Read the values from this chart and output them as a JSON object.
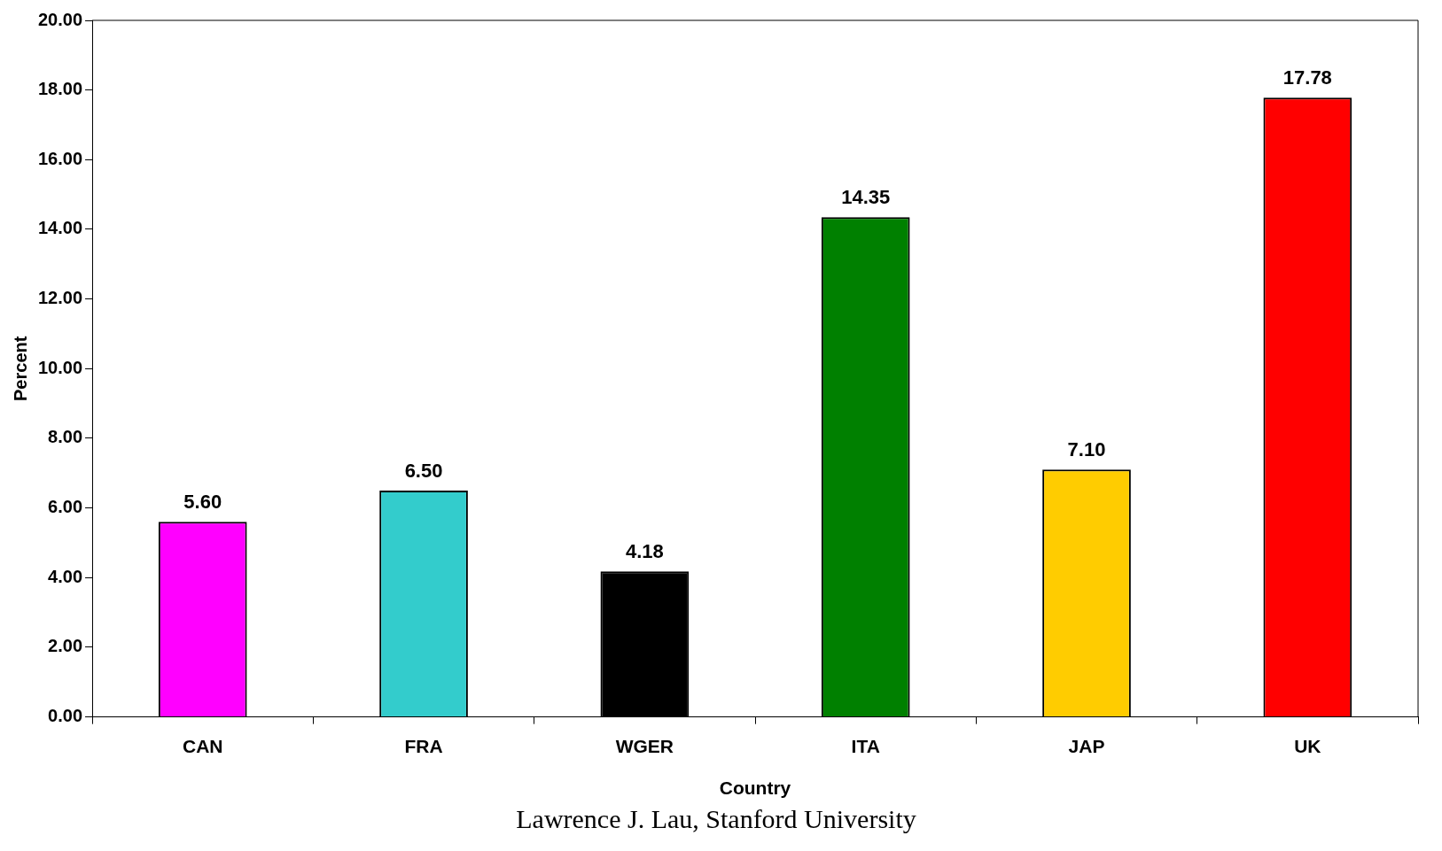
{
  "chart_data": {
    "type": "bar",
    "xlabel": "Country",
    "ylabel": "Percent",
    "categories": [
      "CAN",
      "FRA",
      "WGER",
      "ITA",
      "JAP",
      "UK"
    ],
    "values": [
      5.6,
      6.5,
      4.18,
      14.35,
      7.1,
      17.78
    ],
    "colors": [
      "#ff00ff",
      "#33cccc",
      "#000000",
      "#008000",
      "#ffcc00",
      "#ff0000"
    ],
    "value_labels": [
      "5.60",
      "6.50",
      "4.18",
      "14.35",
      "7.10",
      "17.78"
    ],
    "ylim": [
      0,
      20
    ],
    "yticks": [
      {
        "value": 0,
        "label": "0.00"
      },
      {
        "value": 2,
        "label": "2.00"
      },
      {
        "value": 4,
        "label": "4.00"
      },
      {
        "value": 6,
        "label": "6.00"
      },
      {
        "value": 8,
        "label": "8.00"
      },
      {
        "value": 10,
        "label": "10.00"
      },
      {
        "value": 12,
        "label": "12.00"
      },
      {
        "value": 14,
        "label": "14.00"
      },
      {
        "value": 16,
        "label": "16.00"
      },
      {
        "value": 18,
        "label": "18.00"
      },
      {
        "value": 20,
        "label": "20.00"
      }
    ],
    "grid": false,
    "legend": false,
    "annotations": [
      "Lawrence J. Lau, Stanford University"
    ]
  }
}
